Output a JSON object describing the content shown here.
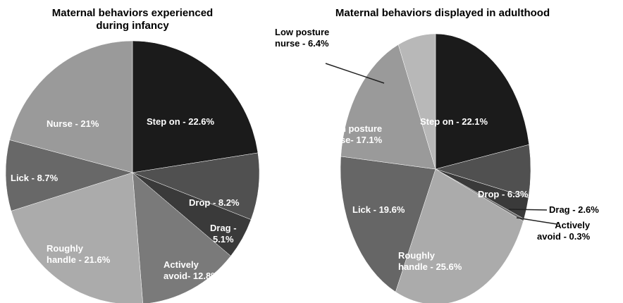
{
  "chart_data": [
    {
      "type": "pie",
      "title": "Maternal behaviors experienced\nduring infancy",
      "values": [
        22.6,
        8.2,
        5.1,
        12.8,
        21.6,
        8.7,
        21
      ],
      "value_labels": [
        "Step on - 22.6%",
        "Drop - 8.2%",
        "Drag -\n5.1%",
        "Actively\navoid- 12.8%",
        "Roughly\nhandle - 21.6%",
        "Lick - 8.7%",
        "Nurse - 21%"
      ],
      "colors": [
        "#1b1b1b",
        "#505050",
        "#3a3a3a",
        "#7a7a7a",
        "#ababab",
        "#686868",
        "#9a9a9a"
      ]
    },
    {
      "type": "pie",
      "title": "Maternal behaviors displayed in adulthood",
      "values": [
        22.1,
        6.3,
        2.6,
        0.3,
        25.6,
        19.6,
        17.1,
        6.4
      ],
      "value_labels": [
        "Step on - 22.1%",
        "Drop - 6.3%",
        "Drag - 2.6%",
        "Actively\navoid - 0.3%",
        "Roughly\nhandle - 25.6%",
        "Lick - 19.6%",
        "High posture\nnurse- 17.1%",
        "Low posture\nnurse - 6.4%"
      ],
      "colors": [
        "#1b1b1b",
        "#505050",
        "#3a3a3a",
        "#6a6a6a",
        "#ababab",
        "#666666",
        "#9a9a9a",
        "#b8b8b8"
      ]
    }
  ]
}
